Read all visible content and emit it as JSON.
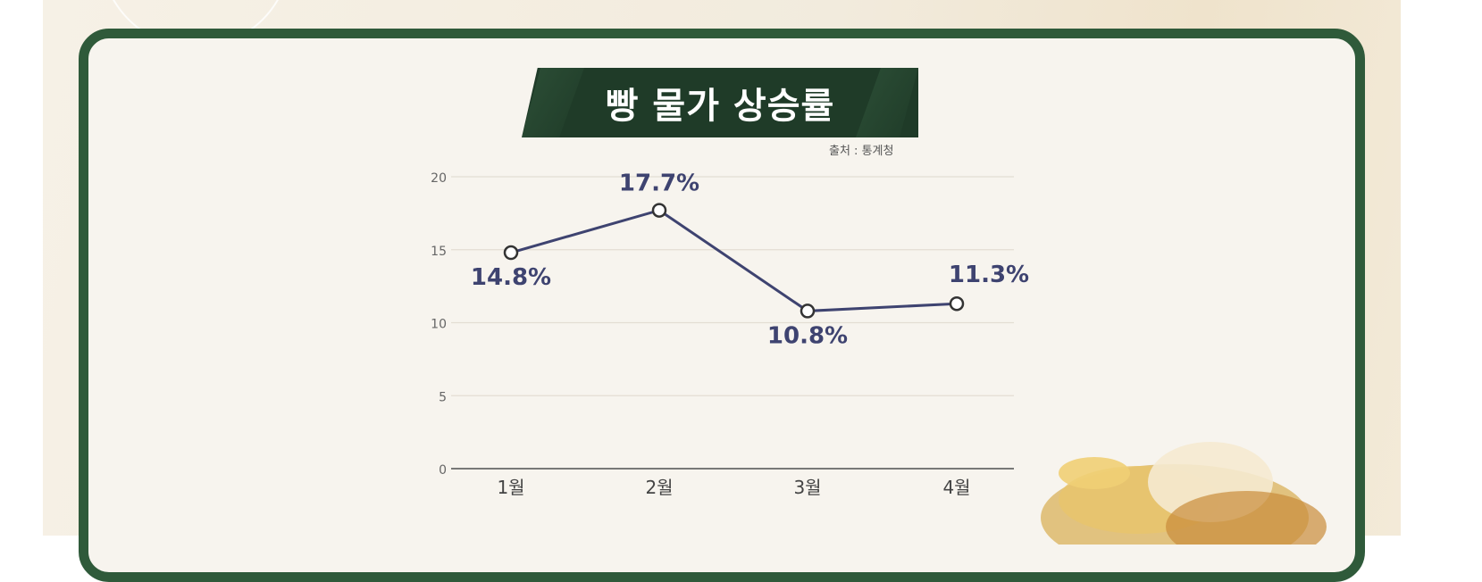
{
  "chart_data": {
    "type": "line",
    "title": "빵 물가 상승률",
    "source_note": "출처 : 통계청",
    "categories": [
      "1월",
      "2월",
      "3월",
      "4월"
    ],
    "series": [
      {
        "values": [
          14.8,
          17.7,
          10.8,
          11.3
        ]
      }
    ],
    "data_labels": [
      "14.8%",
      "17.7%",
      "10.8%",
      "11.3%"
    ],
    "yticks": [
      "0",
      "5",
      "10",
      "15",
      "20"
    ],
    "ylim": [
      0,
      20
    ],
    "grid": true,
    "colors": {
      "line": "#3e4370",
      "frame": "#2f5a3a",
      "title_bg": "#1f3b28"
    }
  }
}
